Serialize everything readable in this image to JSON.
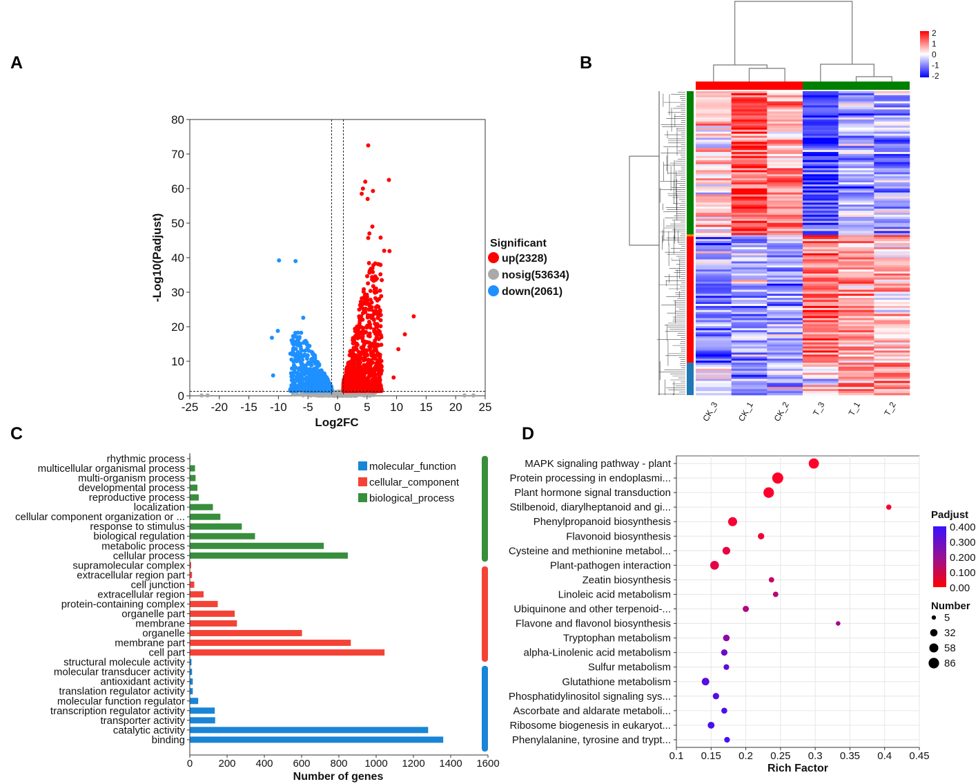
{
  "panels": {
    "a": "A",
    "b": "B",
    "c": "C",
    "d": "D"
  },
  "chart_data": [
    {
      "type": "scatter",
      "panel": "A",
      "title": "",
      "xlabel": "Log2FC",
      "ylabel": "-Log10(Padjust)",
      "xlim": [
        -25,
        25
      ],
      "ylim": [
        0,
        80
      ],
      "xticks": [
        "-25",
        "-20",
        "-15",
        "-10",
        "-5",
        "0",
        "5",
        "10",
        "15",
        "20",
        "25"
      ],
      "yticks": [
        "0",
        "10",
        "20",
        "30",
        "40",
        "50",
        "60",
        "70",
        "80"
      ],
      "thresholds": {
        "log2fc": [
          -1,
          1
        ],
        "neg_log10_padjust": 1.3
      },
      "legend_title": "Significant",
      "legend_placement": "right",
      "series": [
        {
          "name": "up(2328)",
          "color": "#ff0000",
          "count": 2328
        },
        {
          "name": "nosig(53634)",
          "color": "#aaaaaa",
          "count": 53634
        },
        {
          "name": "down(2061)",
          "color": "#1e90ff",
          "count": 2061
        }
      ],
      "notable_points": [
        {
          "x": 5.2,
          "y": 72.5,
          "series": "up"
        },
        {
          "x": 8.7,
          "y": 62.5,
          "series": "up"
        },
        {
          "x": 4.7,
          "y": 62,
          "series": "up"
        },
        {
          "x": 4.3,
          "y": 60,
          "series": "up"
        },
        {
          "x": 6,
          "y": 59.3,
          "series": "up"
        },
        {
          "x": 4.1,
          "y": 58.5,
          "series": "up"
        },
        {
          "x": 5.1,
          "y": 57,
          "series": "up"
        },
        {
          "x": 5.9,
          "y": 49,
          "series": "up"
        },
        {
          "x": 5.4,
          "y": 47,
          "series": "up"
        },
        {
          "x": 7.3,
          "y": 45.8,
          "series": "up"
        },
        {
          "x": 5.2,
          "y": 45.7,
          "series": "up"
        },
        {
          "x": 7.9,
          "y": 42,
          "series": "up"
        },
        {
          "x": 8.8,
          "y": 41.9,
          "series": "up"
        },
        {
          "x": 12.9,
          "y": 23,
          "series": "up"
        },
        {
          "x": 11.4,
          "y": 17.8,
          "series": "up"
        },
        {
          "x": 10.3,
          "y": 13.5,
          "series": "up"
        },
        {
          "x": 9.5,
          "y": 5.3,
          "series": "up"
        },
        {
          "x": -9.9,
          "y": 39.2,
          "series": "down"
        },
        {
          "x": -7.1,
          "y": 39,
          "series": "down"
        },
        {
          "x": -5.8,
          "y": 22.6,
          "series": "down"
        },
        {
          "x": -10.1,
          "y": 18.8,
          "series": "down"
        },
        {
          "x": -11.1,
          "y": 16.8,
          "series": "down"
        },
        {
          "x": -10.9,
          "y": 5.9,
          "series": "down"
        },
        {
          "x": -23,
          "y": 0.1,
          "series": "nosig"
        },
        {
          "x": -22,
          "y": 0.1,
          "series": "nosig"
        },
        {
          "x": 21.5,
          "y": 0.1,
          "series": "nosig"
        },
        {
          "x": 23,
          "y": 0.1,
          "series": "nosig"
        }
      ]
    },
    {
      "type": "heatmap",
      "panel": "B",
      "columns": [
        "CK_3",
        "CK_1",
        "CK_2",
        "T_3",
        "T_1",
        "T_2"
      ],
      "column_groups": [
        {
          "name": "CK",
          "color": "#ff0000"
        },
        {
          "name": "T",
          "color": "#008000"
        }
      ],
      "color_scale": {
        "min": -2,
        "max": 2,
        "colors": [
          "#0000ff",
          "#ffffff",
          "#ff0000"
        ],
        "ticks": [
          "2",
          "1",
          "0",
          "-1",
          "-2"
        ]
      },
      "row_clusters": [
        {
          "color": "#008000",
          "share": 0.47,
          "mean_z": [
            0.4,
            1.3,
            0.8,
            -1.3,
            -0.7,
            -0.8
          ]
        },
        {
          "color": "#ff0000",
          "share": 0.42,
          "mean_z": [
            -0.9,
            -0.7,
            -0.8,
            1.2,
            0.7,
            0.5
          ]
        },
        {
          "color": "#1f77b4",
          "share": 0.11,
          "mean_z": [
            -0.3,
            -1.0,
            -0.6,
            0.2,
            0.9,
            0.9
          ]
        }
      ]
    },
    {
      "type": "bar",
      "panel": "C",
      "orientation": "horizontal",
      "xlabel": "Number of genes",
      "xlim": [
        0,
        1600
      ],
      "xticks": [
        "0",
        "200",
        "400",
        "600",
        "800",
        "1000",
        "1200",
        "1400",
        "1600"
      ],
      "legend_placement": "top-right",
      "series": [
        {
          "name": "molecular_function",
          "color": "#1a85d6"
        },
        {
          "name": "cellular_component",
          "color": "#f44336"
        },
        {
          "name": "biological_process",
          "color": "#388e3c"
        }
      ],
      "categories": [
        {
          "label": "rhythmic process",
          "value": 3,
          "series": "biological_process"
        },
        {
          "label": "multicellular organismal process",
          "value": 28,
          "series": "biological_process"
        },
        {
          "label": "multi-organism process",
          "value": 31,
          "series": "biological_process"
        },
        {
          "label": "developmental process",
          "value": 41,
          "series": "biological_process"
        },
        {
          "label": "reproductive process",
          "value": 48,
          "series": "biological_process"
        },
        {
          "label": "localization",
          "value": 124,
          "series": "biological_process"
        },
        {
          "label": "cellular component organization or ...",
          "value": 164,
          "series": "biological_process"
        },
        {
          "label": "response to stimulus",
          "value": 279,
          "series": "biological_process"
        },
        {
          "label": "biological regulation",
          "value": 350,
          "series": "biological_process"
        },
        {
          "label": "metabolic process",
          "value": 719,
          "series": "biological_process"
        },
        {
          "label": "cellular process",
          "value": 848,
          "series": "biological_process"
        },
        {
          "label": "supramolecular complex",
          "value": 7,
          "series": "cellular_component"
        },
        {
          "label": "extracellular region part",
          "value": 12,
          "series": "cellular_component"
        },
        {
          "label": "cell junction",
          "value": 24,
          "series": "cellular_component"
        },
        {
          "label": "extracellular region",
          "value": 74,
          "series": "cellular_component"
        },
        {
          "label": "protein-containing complex",
          "value": 150,
          "series": "cellular_component"
        },
        {
          "label": "organelle part",
          "value": 241,
          "series": "cellular_component"
        },
        {
          "label": "membrane",
          "value": 253,
          "series": "cellular_component"
        },
        {
          "label": "organelle",
          "value": 602,
          "series": "cellular_component"
        },
        {
          "label": "membrane part",
          "value": 864,
          "series": "cellular_component"
        },
        {
          "label": "cell part",
          "value": 1045,
          "series": "cellular_component"
        },
        {
          "label": "structural molecule activity",
          "value": 9,
          "series": "molecular_function"
        },
        {
          "label": "molecular transducer activity",
          "value": 12,
          "series": "molecular_function"
        },
        {
          "label": "antioxidant activity",
          "value": 16,
          "series": "molecular_function"
        },
        {
          "label": "translation regulator activity",
          "value": 16,
          "series": "molecular_function"
        },
        {
          "label": "molecular function regulator",
          "value": 45,
          "series": "molecular_function"
        },
        {
          "label": "transcription regulator activity",
          "value": 134,
          "series": "molecular_function"
        },
        {
          "label": "transporter activity",
          "value": 136,
          "series": "molecular_function"
        },
        {
          "label": "catalytic activity",
          "value": 1279,
          "series": "molecular_function"
        },
        {
          "label": "binding",
          "value": 1360,
          "series": "molecular_function"
        }
      ]
    },
    {
      "type": "scatter",
      "panel": "D",
      "xlabel": "Rich Factor",
      "xlim": [
        0.1,
        0.45
      ],
      "xticks": [
        "0.1",
        "0.15",
        "0.2",
        "0.25",
        "0.3",
        "0.35",
        "0.4",
        "0.45"
      ],
      "color_legend": {
        "title": "Padjust",
        "ticks": [
          "0.400",
          "0.300",
          "0.200",
          "0.100",
          "0.00"
        ],
        "low_color": "#ff0000",
        "high_color": "#3a10ff"
      },
      "size_legend": {
        "title": "Number",
        "values": [
          5,
          32,
          58,
          86
        ],
        "labels": [
          "5",
          "32",
          "58",
          "86"
        ]
      },
      "points": [
        {
          "label": "MAPK signaling pathway - plant",
          "rich_factor": 0.298,
          "number": 70,
          "padjust": 0.0
        },
        {
          "label": "Protein processing in endoplasmi...",
          "rich_factor": 0.246,
          "number": 86,
          "padjust": 0.0
        },
        {
          "label": "Plant hormone signal transduction",
          "rich_factor": 0.233,
          "number": 76,
          "padjust": 0.005
        },
        {
          "label": "Stilbenoid, diarylheptanoid and gi...",
          "rich_factor": 0.406,
          "number": 9,
          "padjust": 0.01
        },
        {
          "label": "Phenylpropanoid biosynthesis",
          "rich_factor": 0.181,
          "number": 50,
          "padjust": 0.02
        },
        {
          "label": "Flavonoid biosynthesis",
          "rich_factor": 0.222,
          "number": 18,
          "padjust": 0.03
        },
        {
          "label": "Cysteine and methionine metabol...",
          "rich_factor": 0.172,
          "number": 32,
          "padjust": 0.05
        },
        {
          "label": "Plant-pathogen interaction",
          "rich_factor": 0.155,
          "number": 46,
          "padjust": 0.05
        },
        {
          "label": "Zeatin biosynthesis",
          "rich_factor": 0.237,
          "number": 10,
          "padjust": 0.12
        },
        {
          "label": "Linoleic acid metabolism",
          "rich_factor": 0.243,
          "number": 10,
          "padjust": 0.14
        },
        {
          "label": "Ubiquinone and other terpenoid-...",
          "rich_factor": 0.2,
          "number": 16,
          "padjust": 0.16
        },
        {
          "label": "Flavone and flavonol biosynthesis",
          "rich_factor": 0.333,
          "number": 5,
          "padjust": 0.18
        },
        {
          "label": "Tryptophan metabolism",
          "rich_factor": 0.172,
          "number": 20,
          "padjust": 0.23
        },
        {
          "label": "alpha-Linolenic acid metabolism",
          "rich_factor": 0.169,
          "number": 18,
          "padjust": 0.3
        },
        {
          "label": "Sulfur metabolism",
          "rich_factor": 0.172,
          "number": 12,
          "padjust": 0.32
        },
        {
          "label": "Glutathione metabolism",
          "rich_factor": 0.142,
          "number": 30,
          "padjust": 0.34
        },
        {
          "label": "Phosphatidylinositol signaling sys...",
          "rich_factor": 0.157,
          "number": 18,
          "padjust": 0.35
        },
        {
          "label": "Ascorbate and aldarate metaboli...",
          "rich_factor": 0.169,
          "number": 14,
          "padjust": 0.36
        },
        {
          "label": "Ribosome biogenesis in eukaryot...",
          "rich_factor": 0.15,
          "number": 22,
          "padjust": 0.37
        },
        {
          "label": "Phenylalanine, tyrosine and trypt...",
          "rich_factor": 0.173,
          "number": 12,
          "padjust": 0.38
        }
      ]
    }
  ]
}
